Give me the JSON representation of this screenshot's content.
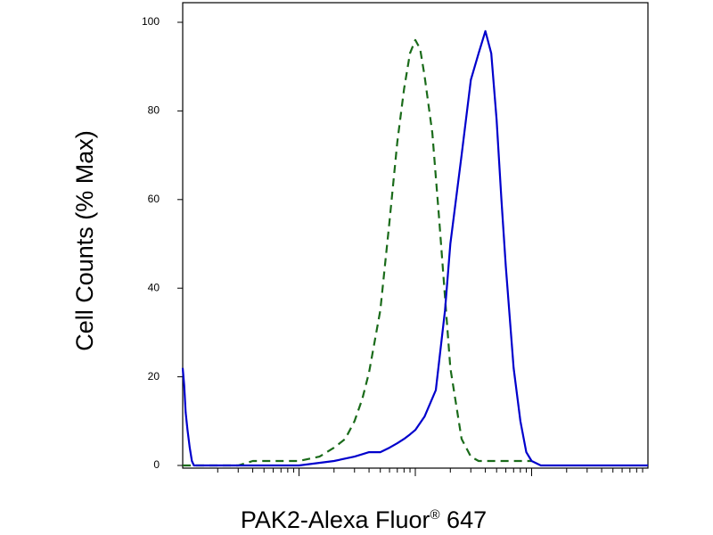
{
  "chart_data": {
    "type": "line",
    "title": "",
    "xlabel": "PAK2-Alexa Fluor",
    "xlabel_superscript": "®",
    "xlabel_suffix": " 647",
    "ylabel": "Cell Counts (% Max)",
    "xscale": "log",
    "xlim": [
      1,
      10000
    ],
    "ylim": [
      0,
      100
    ],
    "yticks": [
      0,
      20,
      40,
      60,
      80,
      100
    ],
    "ytick_labels": [
      "0",
      "20",
      "40",
      "60",
      "80",
      "100"
    ],
    "x_major_ticks": [
      10,
      100,
      1000
    ],
    "grid": false,
    "legend": "none",
    "series": [
      {
        "color": "#1a6b1a",
        "linestyle": "dashed",
        "x": [
          1,
          2,
          3,
          4,
          5,
          6,
          7,
          8,
          9,
          10,
          15,
          20,
          25,
          30,
          35,
          40,
          50,
          60,
          70,
          80,
          90,
          100,
          110,
          120,
          140,
          160,
          180,
          200,
          250,
          300,
          350,
          400,
          500,
          600,
          800,
          1000
        ],
        "y": [
          0,
          0,
          0,
          1,
          1,
          1,
          1,
          1,
          1,
          1,
          2,
          4,
          6,
          10,
          15,
          21,
          35,
          55,
          73,
          85,
          93,
          96,
          94,
          88,
          75,
          56,
          38,
          22,
          6,
          2,
          1,
          1,
          1,
          1,
          1,
          1
        ]
      },
      {
        "color": "#0000cc",
        "linestyle": "solid",
        "x": [
          1,
          1.03,
          1.06,
          1.1,
          1.15,
          1.2,
          1.25,
          1.3,
          1.5,
          2,
          5,
          10,
          20,
          30,
          40,
          50,
          60,
          70,
          80,
          90,
          100,
          120,
          150,
          180,
          200,
          250,
          300,
          350,
          400,
          450,
          500,
          550,
          600,
          700,
          800,
          900,
          1000,
          1200,
          1500,
          2000,
          5000,
          10000
        ],
        "y": [
          22,
          18,
          12,
          8,
          4,
          1,
          0,
          0,
          0,
          0,
          0,
          0,
          1,
          2,
          3,
          3,
          4,
          5,
          6,
          7,
          8,
          11,
          17,
          35,
          50,
          70,
          87,
          93,
          98,
          93,
          78,
          60,
          45,
          22,
          10,
          3,
          1,
          0,
          0,
          0,
          0,
          0
        ]
      }
    ]
  }
}
